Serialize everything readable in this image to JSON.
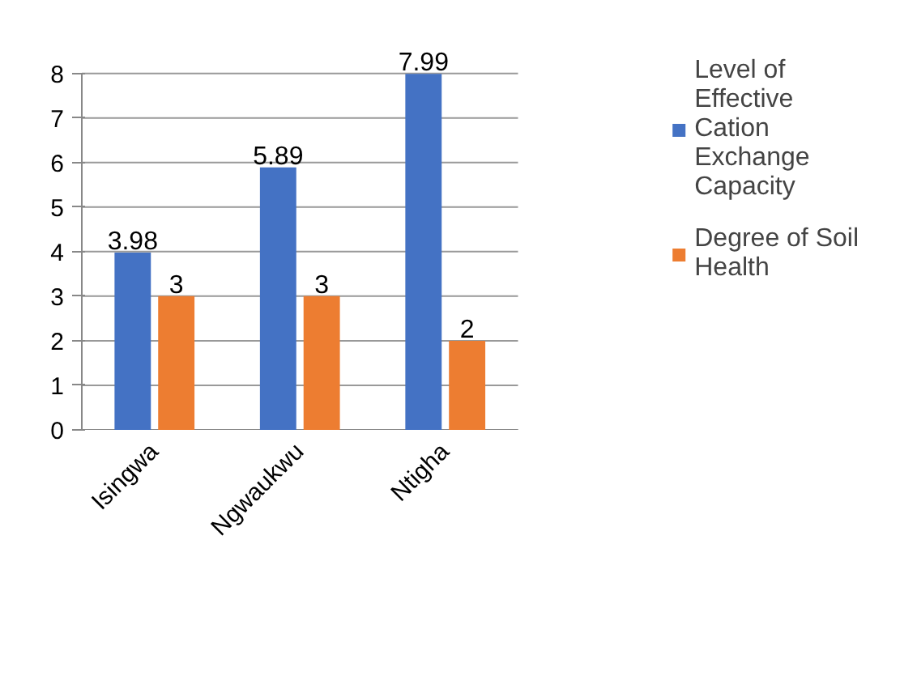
{
  "chart_data": {
    "type": "bar",
    "categories": [
      "Isingwa",
      "Ngwaukwu",
      "Ntigha"
    ],
    "series": [
      {
        "name": "Level of Effective Cation Exchange Capacity",
        "color": "#4472c4",
        "values": [
          3.98,
          5.89,
          7.99
        ]
      },
      {
        "name": "Degree of Soil Health",
        "color": "#ed7d31",
        "values": [
          3,
          3,
          2
        ]
      }
    ],
    "ylim": [
      0,
      8
    ],
    "yticks": [
      0,
      1,
      2,
      3,
      4,
      5,
      6,
      7,
      8
    ],
    "grid": "y",
    "legend": "right",
    "data_labels": true
  }
}
